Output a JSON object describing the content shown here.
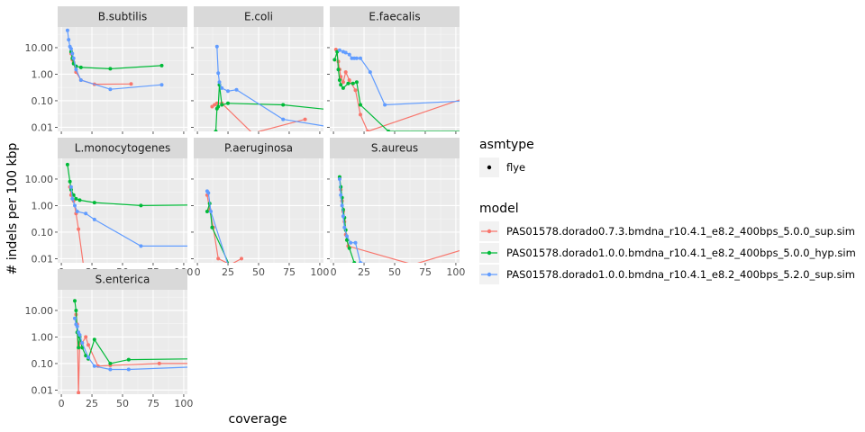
{
  "chart_data": {
    "type": "line",
    "xlabel": "coverage",
    "ylabel": "# indels per 100 kbp",
    "y_scale": "log10",
    "xlim": [
      -3,
      103
    ],
    "ylim": [
      0.007,
      60
    ],
    "x_ticks": [
      0,
      25,
      50,
      75,
      100
    ],
    "y_ticks": [
      0.01,
      0.1,
      1,
      10
    ],
    "y_tick_labels": [
      "0.01",
      "0.10",
      "1.00",
      "10.00"
    ],
    "grid": true,
    "legend_placement": "right",
    "legend": {
      "asmtype_title": "asmtype",
      "asmtype_items": [
        "flye"
      ],
      "model_title": "model",
      "model_items": [
        {
          "name": "PAS01578.dorado0.7.3.bmdna_r10.4.1_e8.2_400bps_5.0.0_sup.sim",
          "color": "#F8766D"
        },
        {
          "name": "PAS01578.dorado1.0.0.bmdna_r10.4.1_e8.2_400bps_5.0.0_hyp.sim",
          "color": "#00BA38"
        },
        {
          "name": "PAS01578.dorado1.0.0.bmdna_r10.4.1_e8.2_400bps_5.2.0_sup.sim",
          "color": "#619CFF"
        }
      ]
    },
    "panels": [
      {
        "title": "B.subtilis",
        "series": [
          {
            "x": [
              8,
              9,
              10,
              12,
              16,
              27,
              57
            ],
            "y": [
              6.0,
              3.5,
              2.8,
              1.2,
              0.6,
              0.42,
              0.43
            ]
          },
          {
            "x": [
              8,
              9,
              10,
              12,
              16,
              40,
              82
            ],
            "y": [
              7.0,
              4.0,
              2.5,
              2.0,
              1.8,
              1.6,
              2.1
            ]
          },
          {
            "x": [
              5,
              6,
              7,
              8,
              9,
              10,
              12,
              16,
              40,
              82
            ],
            "y": [
              45,
              20,
              11,
              9,
              6,
              4,
              1.5,
              0.6,
              0.27,
              0.4
            ]
          }
        ]
      },
      {
        "title": "E.coli",
        "series": [
          {
            "x": [
              12,
              14,
              16,
              20,
              45,
              88
            ],
            "y": [
              0.06,
              0.07,
              0.08,
              0.08,
              0.006,
              0.02
            ]
          },
          {
            "x": [
              15,
              16,
              17,
              18,
              20,
              25,
              70,
              110
            ],
            "y": [
              0.007,
              0.05,
              0.06,
              0.4,
              0.07,
              0.08,
              0.07,
              0.045
            ]
          },
          {
            "x": [
              16,
              17,
              18,
              20,
              25,
              32,
              70,
              110
            ],
            "y": [
              11,
              1.1,
              0.5,
              0.3,
              0.23,
              0.26,
              0.02,
              0.01
            ]
          }
        ]
      },
      {
        "title": "E.faecalis",
        "series": [
          {
            "x": [
              2,
              4,
              5,
              6,
              8,
              10,
              13,
              18,
              22,
              28,
              120
            ],
            "y": [
              8.5,
              3.0,
              1.5,
              0.8,
              0.5,
              1.2,
              0.6,
              0.25,
              0.03,
              0.007,
              0.2
            ]
          },
          {
            "x": [
              1,
              3,
              4,
              5,
              6,
              8,
              12,
              16,
              19,
              22,
              45,
              110
            ],
            "y": [
              3.5,
              7.0,
              1.5,
              0.6,
              0.4,
              0.3,
              0.45,
              0.45,
              0.5,
              0.07,
              0.007,
              0.007
            ]
          },
          {
            "x": [
              5,
              8,
              10,
              13,
              15,
              17,
              19,
              22,
              30,
              42,
              110
            ],
            "y": [
              8.0,
              7.0,
              6.5,
              5.5,
              4.0,
              4.0,
              4.0,
              4.0,
              1.2,
              0.07,
              0.1
            ]
          }
        ]
      },
      {
        "title": "L.monocytogenes",
        "series": [
          {
            "x": [
              7,
              8,
              10,
              12,
              14,
              18,
              45,
              88
            ],
            "y": [
              5.0,
              2.5,
              1.5,
              0.5,
              0.13,
              0.006,
              0.006,
              0.006
            ]
          },
          {
            "x": [
              5,
              7,
              8,
              10,
              12,
              15,
              27,
              65,
              110
            ],
            "y": [
              35,
              8.0,
              4.0,
              2.5,
              1.8,
              1.6,
              1.3,
              1.0,
              1.05
            ]
          },
          {
            "x": [
              8,
              9,
              11,
              13,
              20,
              27,
              65,
              110
            ],
            "y": [
              5.0,
              1.8,
              1.0,
              0.6,
              0.5,
              0.3,
              0.03,
              0.03
            ]
          }
        ]
      },
      {
        "title": "P.aeruginosa",
        "series": [
          {
            "x": [
              8,
              10,
              13,
              17,
              27,
              36
            ],
            "y": [
              2.5,
              0.7,
              0.15,
              0.01,
              0.006,
              0.01
            ]
          },
          {
            "x": [
              8,
              10,
              12,
              26,
              55
            ],
            "y": [
              0.6,
              1.2,
              0.15,
              0.006,
              0.006
            ]
          },
          {
            "x": [
              8,
              9,
              11,
              25,
              56
            ],
            "y": [
              3.5,
              3.0,
              0.6,
              0.006,
              0.006
            ]
          }
        ]
      },
      {
        "title": "S.aureus",
        "series": [
          {
            "x": [
              5,
              6,
              7,
              8,
              9,
              10,
              12,
              65,
              110
            ],
            "y": [
              11,
              4.0,
              1.5,
              0.6,
              0.25,
              0.08,
              0.03,
              0.006,
              0.025
            ]
          },
          {
            "x": [
              5,
              6,
              7,
              8,
              9,
              10,
              11,
              13,
              17,
              23,
              100,
              110
            ],
            "y": [
              12,
              5.0,
              2.0,
              0.7,
              0.35,
              0.12,
              0.05,
              0.025,
              0.007,
              0.006,
              0.006,
              0.008
            ]
          },
          {
            "x": [
              5,
              6,
              7,
              8,
              9,
              11,
              14,
              18,
              22,
              40,
              95,
              110
            ],
            "y": [
              10,
              2.5,
              1.0,
              0.4,
              0.15,
              0.07,
              0.04,
              0.04,
              0.007,
              0.006,
              0.006,
              0.006
            ]
          }
        ]
      },
      {
        "title": "S.enterica",
        "series": [
          {
            "x": [
              12,
              13,
              14,
              15,
              17,
              20,
              22,
              30,
              40,
              80,
              110
            ],
            "y": [
              7.0,
              3.0,
              0.008,
              0.6,
              0.6,
              1.0,
              0.5,
              0.08,
              0.085,
              0.1,
              0.1
            ]
          },
          {
            "x": [
              11,
              12,
              13,
              14,
              15,
              17,
              20,
              22,
              27,
              40,
              55,
              110
            ],
            "y": [
              23,
              10,
              1.5,
              0.4,
              1.0,
              0.4,
              0.2,
              0.15,
              0.8,
              0.1,
              0.14,
              0.15
            ]
          },
          {
            "x": [
              11,
              12,
              13,
              14,
              15,
              17,
              22,
              27,
              40,
              55,
              110
            ],
            "y": [
              5.0,
              3.0,
              2.5,
              1.5,
              1.2,
              0.6,
              0.17,
              0.08,
              0.06,
              0.06,
              0.075
            ]
          }
        ]
      }
    ]
  }
}
